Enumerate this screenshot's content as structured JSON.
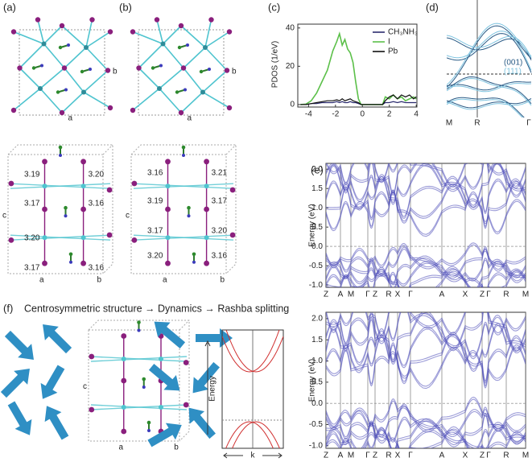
{
  "labels": {
    "a": "(a)",
    "b": "(b)",
    "c": "(c)",
    "d": "(d)",
    "e": "(e)",
    "f": "(f)"
  },
  "structures": {
    "a_top": {
      "axes": [
        "a",
        "b"
      ]
    },
    "b_top": {
      "axes": [
        "a",
        "b"
      ]
    },
    "a_bottom": {
      "axes": [
        "c",
        "a",
        "b"
      ],
      "left_bonds": [
        "3.19",
        "3.17",
        "3.20",
        "3.17"
      ],
      "right_bonds": [
        "3.20",
        "3.16",
        "3.16"
      ]
    },
    "b_bottom": {
      "axes": [
        "c",
        "a",
        "b"
      ],
      "left_bonds": [
        "3.16",
        "3.19",
        "3.17",
        "3.20"
      ],
      "right_bonds": [
        "3.21",
        "3.17",
        "3.20",
        "3.16"
      ]
    },
    "f": {
      "axes": [
        "c",
        "a",
        "b"
      ]
    }
  },
  "panel_f": {
    "title": "Centrosymmetric structure → Dynamics → Rashba splitting"
  },
  "chart_data": [
    {
      "type": "line",
      "ylabel": "PDOS (1/eV)",
      "x": [
        -4.6,
        -4.2,
        -3.8,
        -3.4,
        -3.0,
        -2.6,
        -2.2,
        -1.9,
        -1.7,
        -1.5,
        -1.3,
        -1.1,
        -0.9,
        -0.7,
        -0.5,
        -0.3,
        -0.1,
        1.5,
        1.7,
        2.0,
        2.3,
        2.6,
        2.9,
        3.2,
        3.5,
        3.8,
        4.0
      ],
      "series": [
        {
          "name": "CH₃NH₃",
          "color": "#2b2b6e",
          "values": [
            0,
            0,
            0.5,
            0.5,
            1,
            1,
            1,
            1.5,
            1,
            1.5,
            1,
            1,
            1.5,
            1,
            1,
            0.5,
            0,
            0,
            1,
            1,
            1.5,
            1,
            1.5,
            1,
            1,
            1,
            1
          ]
        },
        {
          "name": "I",
          "color": "#5cc04a",
          "values": [
            0,
            0.2,
            2,
            6,
            12,
            18,
            28,
            33,
            37,
            31,
            34,
            29,
            27,
            22,
            12,
            3,
            0,
            0,
            4,
            3,
            5,
            3,
            4,
            2,
            3,
            4,
            3
          ]
        },
        {
          "name": "Pb",
          "color": "#111111",
          "values": [
            0,
            0,
            0.5,
            1,
            1.5,
            2,
            2,
            2.5,
            2,
            3,
            2,
            2.5,
            3,
            2,
            1.5,
            1,
            0,
            0,
            2,
            4,
            5,
            3,
            5,
            4,
            5,
            3,
            4
          ]
        }
      ],
      "xlim": [
        -4.8,
        4.05
      ],
      "ylim": [
        -1.3,
        42
      ],
      "xticks": [
        -4,
        -2,
        0,
        2,
        4
      ],
      "yticks": [
        0,
        20,
        40
      ]
    },
    {
      "type": "band",
      "kpoints": [
        "M",
        "R",
        "Γ"
      ],
      "legend": [
        {
          "label": "(001)",
          "color": "#2a5b86"
        },
        {
          "label": "(111)",
          "color": "#7fc4e0"
        }
      ]
    },
    {
      "type": "band",
      "ylabel": "Energy (eV)",
      "ylim": [
        -1.06,
        2.15
      ],
      "yticks": [
        {
          "value": -1,
          "label": "-1.0"
        },
        -0.5,
        {
          "value": 0,
          "label": "0.0"
        },
        0.5,
        {
          "value": 1,
          "label": "1.0"
        },
        1.5,
        {
          "value": 2,
          "label": "2.0"
        }
      ],
      "kpoints": [
        "Z",
        "A",
        "M",
        "Γ",
        "Z",
        "R",
        "X",
        "Γ",
        "A",
        "X",
        "Z",
        "Γ",
        "R",
        "M"
      ]
    },
    {
      "type": "band",
      "ylabel": "Energy (eV)",
      "ylim": [
        -1.06,
        2.15
      ],
      "yticks": [
        {
          "value": -1,
          "label": "-1.0"
        },
        -0.5,
        {
          "value": 0,
          "label": "0.0"
        },
        0.5,
        {
          "value": 1,
          "label": "1.0"
        },
        1.5,
        {
          "value": 2,
          "label": "2.0"
        }
      ],
      "kpoints": [
        "Z",
        "A",
        "M",
        "Γ",
        "Z",
        "R",
        "X",
        "Γ",
        "A",
        "X",
        "Z",
        "Γ",
        "R",
        "M"
      ]
    },
    {
      "type": "band",
      "ylabel": "Energy",
      "xlabel": "k"
    }
  ]
}
